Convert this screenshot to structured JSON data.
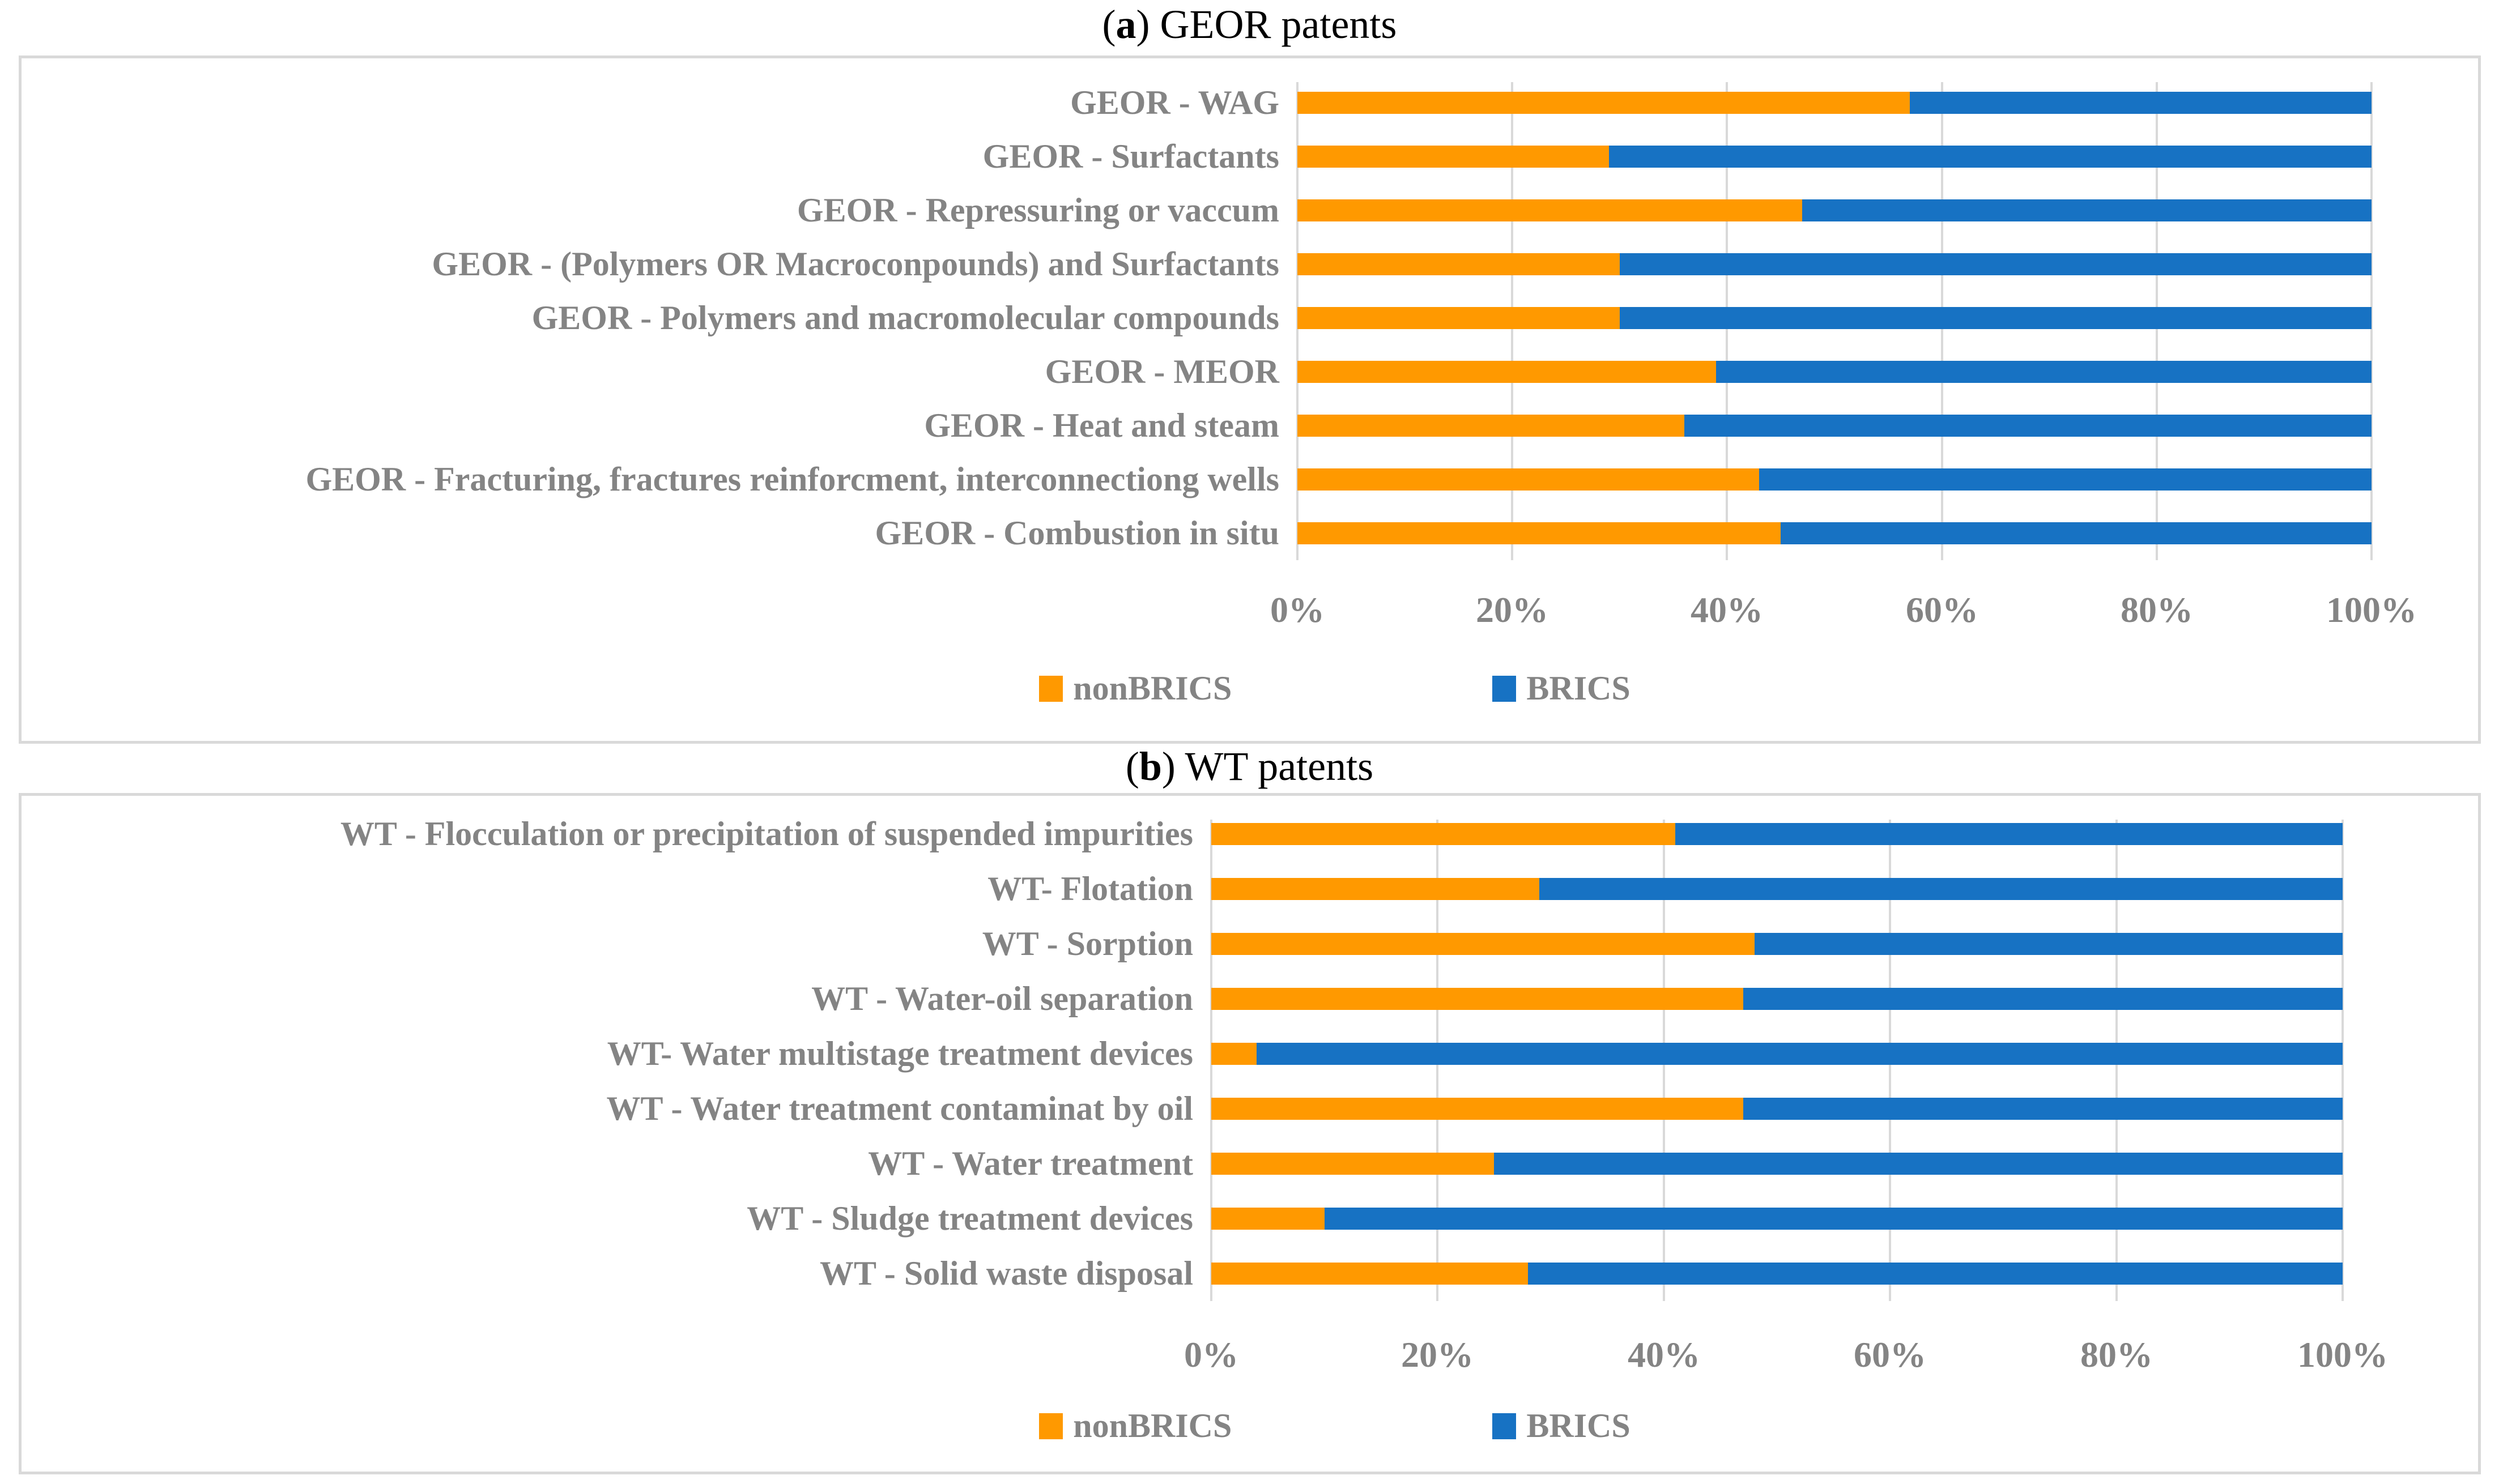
{
  "style": {
    "nonbrics_color": "#FF9900",
    "brics_color": "#1772C3",
    "grid_color": "#D9D9D9",
    "panel_border_color": "#D9D9D9",
    "label_text_color": "#848484",
    "title_text_color": "#000000",
    "background": "#FFFFFF"
  },
  "chart_data": [
    {
      "type": "bar",
      "stacked": true,
      "orientation": "horizontal",
      "title": "(a) GEOR patents",
      "title_letter": "a",
      "title_rest": " GEOR patents",
      "categories": [
        "GEOR - WAG",
        "GEOR - Surfactants",
        "GEOR - Repressuring or vaccum",
        "GEOR - (Polymers OR Macroconpounds) and Surfactants",
        "GEOR - Polymers and macromolecular compounds",
        "GEOR - MEOR",
        "GEOR - Heat and steam",
        "GEOR - Fracturing, fractures reinforcment, interconnectiong wells",
        "GEOR - Combustion in situ"
      ],
      "series": [
        {
          "name": "nonBRICS",
          "values": [
            57,
            29,
            47,
            30,
            30,
            39,
            36,
            43,
            45
          ]
        },
        {
          "name": "BRICS",
          "values": [
            43,
            71,
            53,
            70,
            70,
            61,
            64,
            57,
            55
          ]
        }
      ],
      "x_ticks": [
        "0%",
        "20%",
        "40%",
        "60%",
        "80%",
        "100%"
      ],
      "xlim": [
        0,
        100
      ],
      "units": "percent",
      "grid": true,
      "legend_position": "bottom"
    },
    {
      "type": "bar",
      "stacked": true,
      "orientation": "horizontal",
      "title": "(b) WT patents",
      "title_letter": "b",
      "title_rest": " WT patents",
      "categories": [
        "WT - Flocculation or precipitation of suspended impurities",
        "WT- Flotation",
        "WT - Sorption",
        "WT - Water-oil separation",
        "WT- Water multistage treatment devices",
        "WT - Water treatment contaminat by oil",
        "WT - Water treatment",
        "WT - Sludge treatment devices",
        "WT - Solid waste disposal"
      ],
      "series": [
        {
          "name": "nonBRICS",
          "values": [
            41,
            29,
            48,
            47,
            4,
            47,
            25,
            10,
            28
          ]
        },
        {
          "name": "BRICS",
          "values": [
            59,
            71,
            52,
            53,
            96,
            53,
            75,
            90,
            72
          ]
        }
      ],
      "x_ticks": [
        "0%",
        "20%",
        "40%",
        "60%",
        "80%",
        "100%"
      ],
      "xlim": [
        0,
        100
      ],
      "units": "percent",
      "grid": true,
      "legend_position": "bottom"
    }
  ],
  "legend": {
    "nonbrics_label": "nonBRICS",
    "brics_label": "BRICS"
  }
}
